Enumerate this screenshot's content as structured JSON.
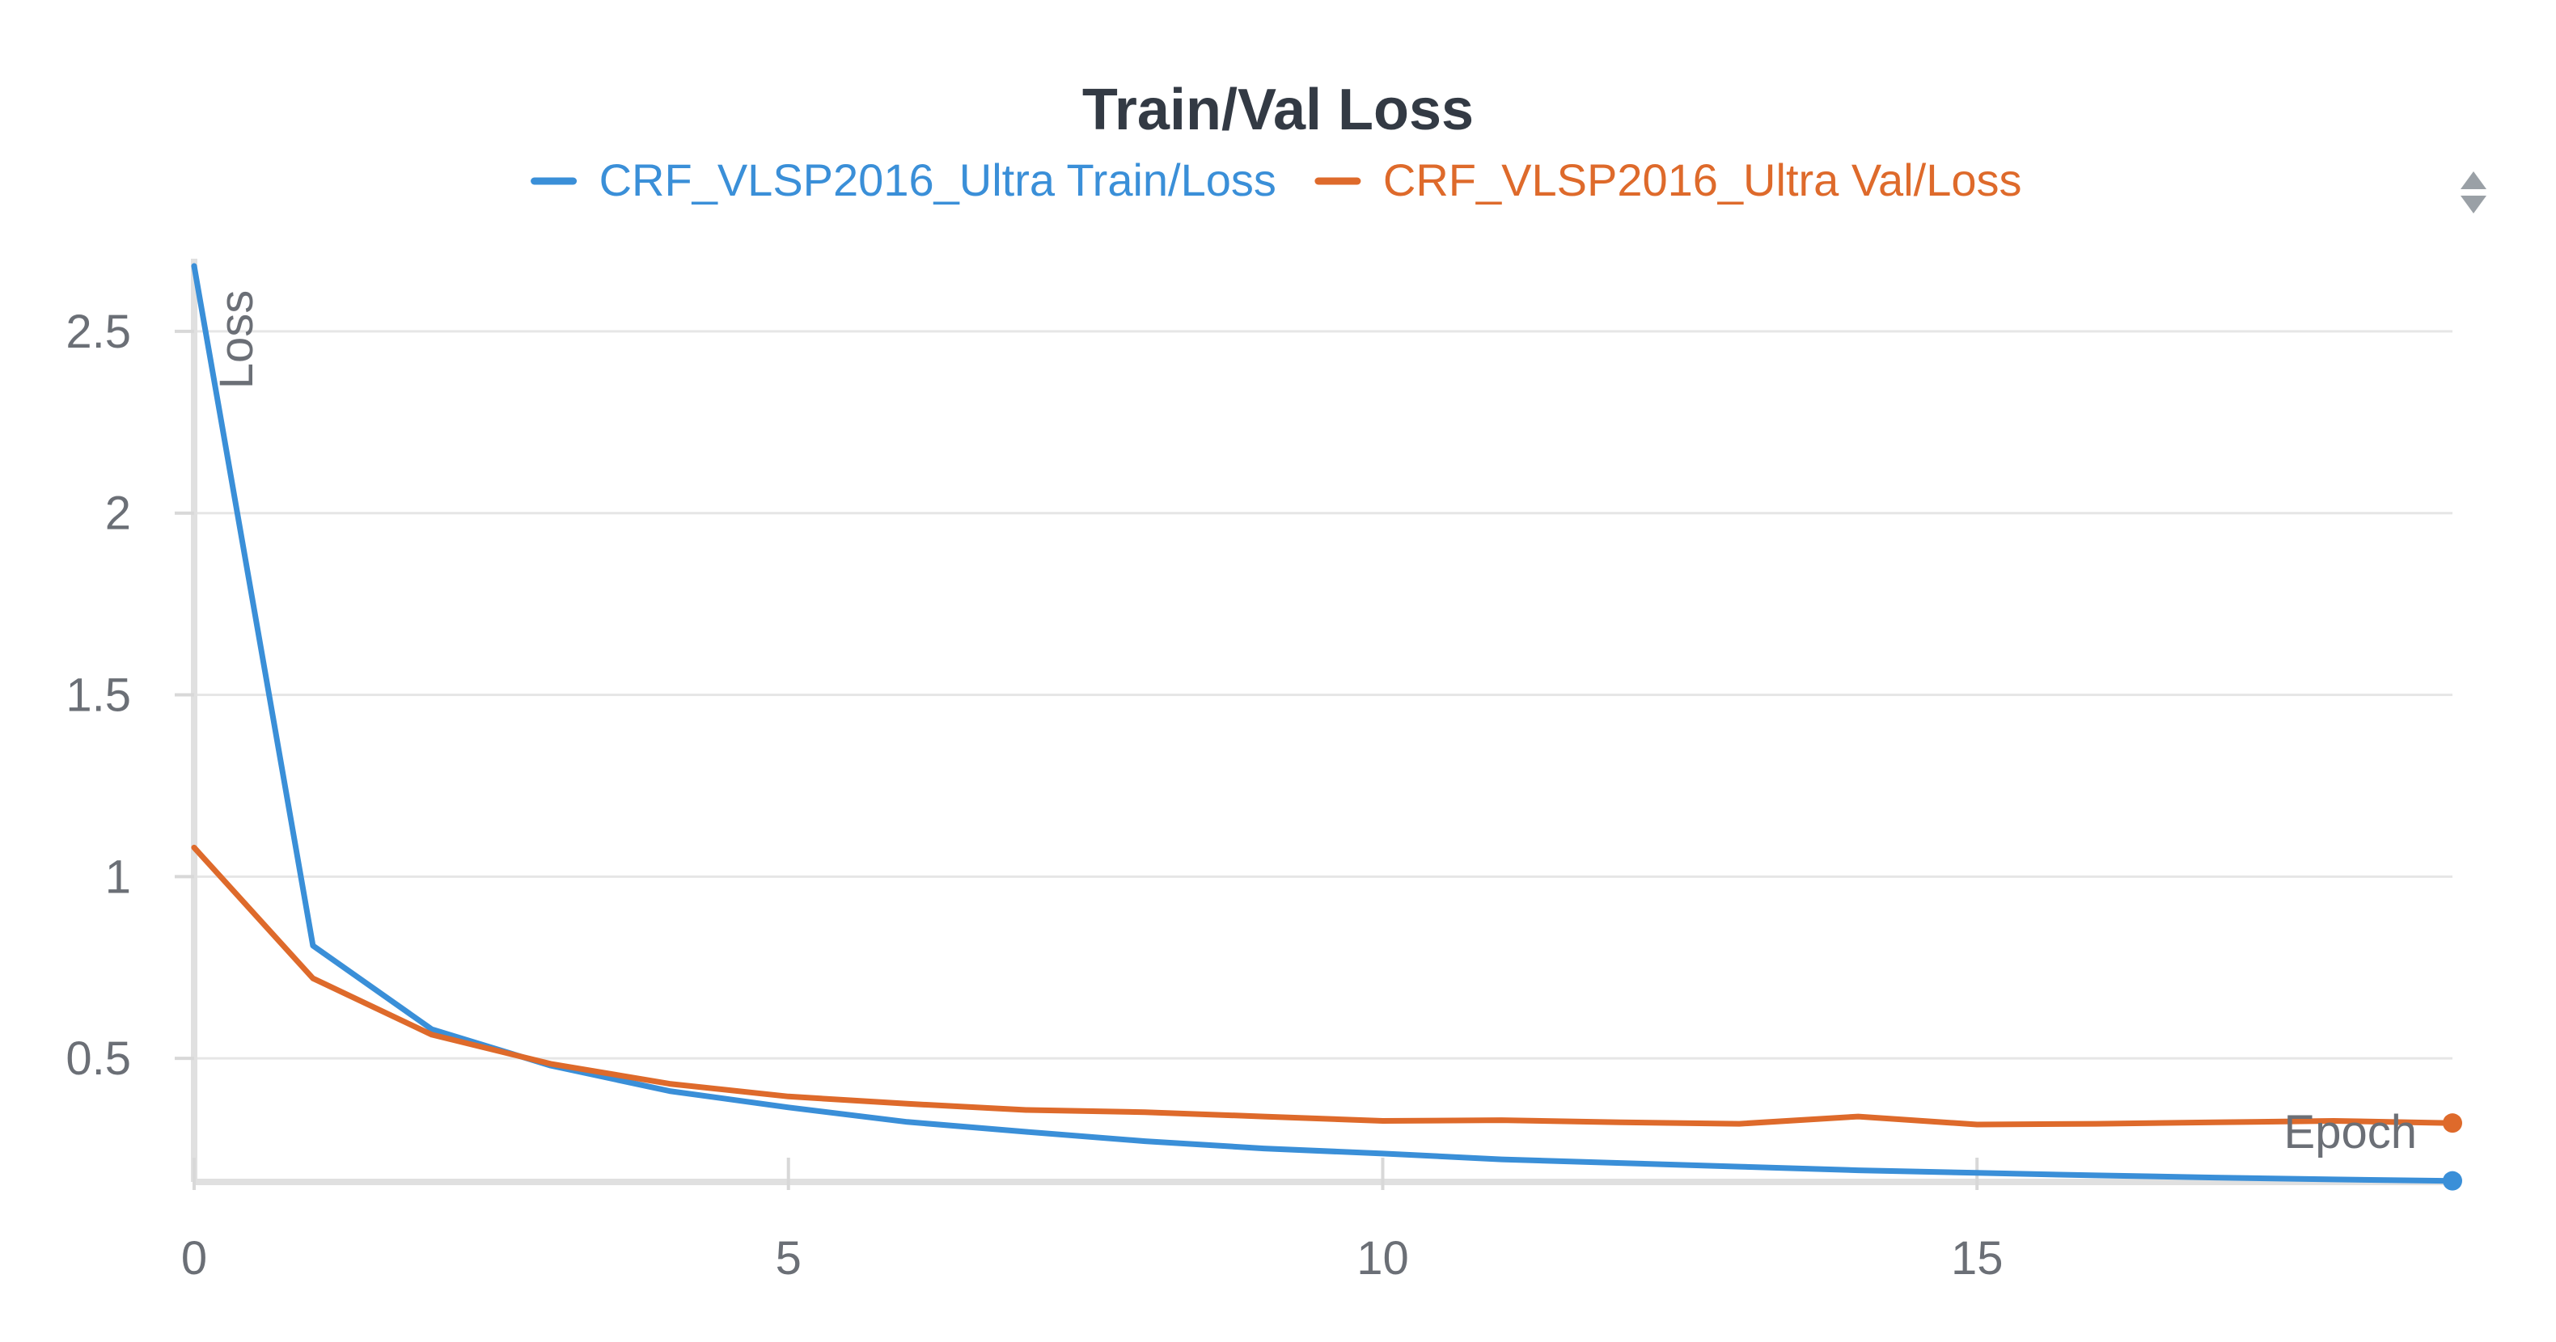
{
  "chart_data": {
    "type": "line",
    "title": "Train/Val Loss",
    "xlabel": "Epoch",
    "ylabel": "Loss",
    "xlim": [
      0,
      19
    ],
    "ylim": [
      0.16,
      2.7
    ],
    "xticks": [
      0,
      5,
      10,
      15
    ],
    "yticks": [
      0.5,
      1,
      1.5,
      2,
      2.5
    ],
    "xtick_labels": [
      "0",
      "5",
      "10",
      "15"
    ],
    "ytick_labels": [
      "0.5",
      "1",
      "1.5",
      "2",
      "2.5"
    ],
    "grid": true,
    "legend_position": "top-center",
    "series": [
      {
        "name": "CRF_VLSP2016_Ultra Train/Loss",
        "color": "#3a8fd8",
        "x": [
          0,
          1,
          2,
          3,
          4,
          5,
          6,
          7,
          8,
          9,
          10,
          11,
          12,
          13,
          14,
          15,
          16,
          17,
          18,
          19
        ],
        "values": [
          2.68,
          0.81,
          0.58,
          0.48,
          0.41,
          0.365,
          0.325,
          0.298,
          0.272,
          0.252,
          0.238,
          0.222,
          0.212,
          0.202,
          0.192,
          0.185,
          0.178,
          0.172,
          0.167,
          0.163
        ]
      },
      {
        "name": "CRF_VLSP2016_Ultra Val/Loss",
        "color": "#de6a2b",
        "x": [
          0,
          1,
          2,
          3,
          4,
          5,
          6,
          7,
          8,
          9,
          10,
          11,
          12,
          13,
          14,
          15,
          16,
          17,
          18,
          19
        ],
        "values": [
          1.08,
          0.72,
          0.565,
          0.485,
          0.43,
          0.395,
          0.375,
          0.358,
          0.352,
          0.34,
          0.328,
          0.33,
          0.324,
          0.32,
          0.34,
          0.318,
          0.32,
          0.324,
          0.328,
          0.322
        ]
      }
    ]
  },
  "legend": {
    "scroll_icon": "up-down-arrows-icon"
  }
}
